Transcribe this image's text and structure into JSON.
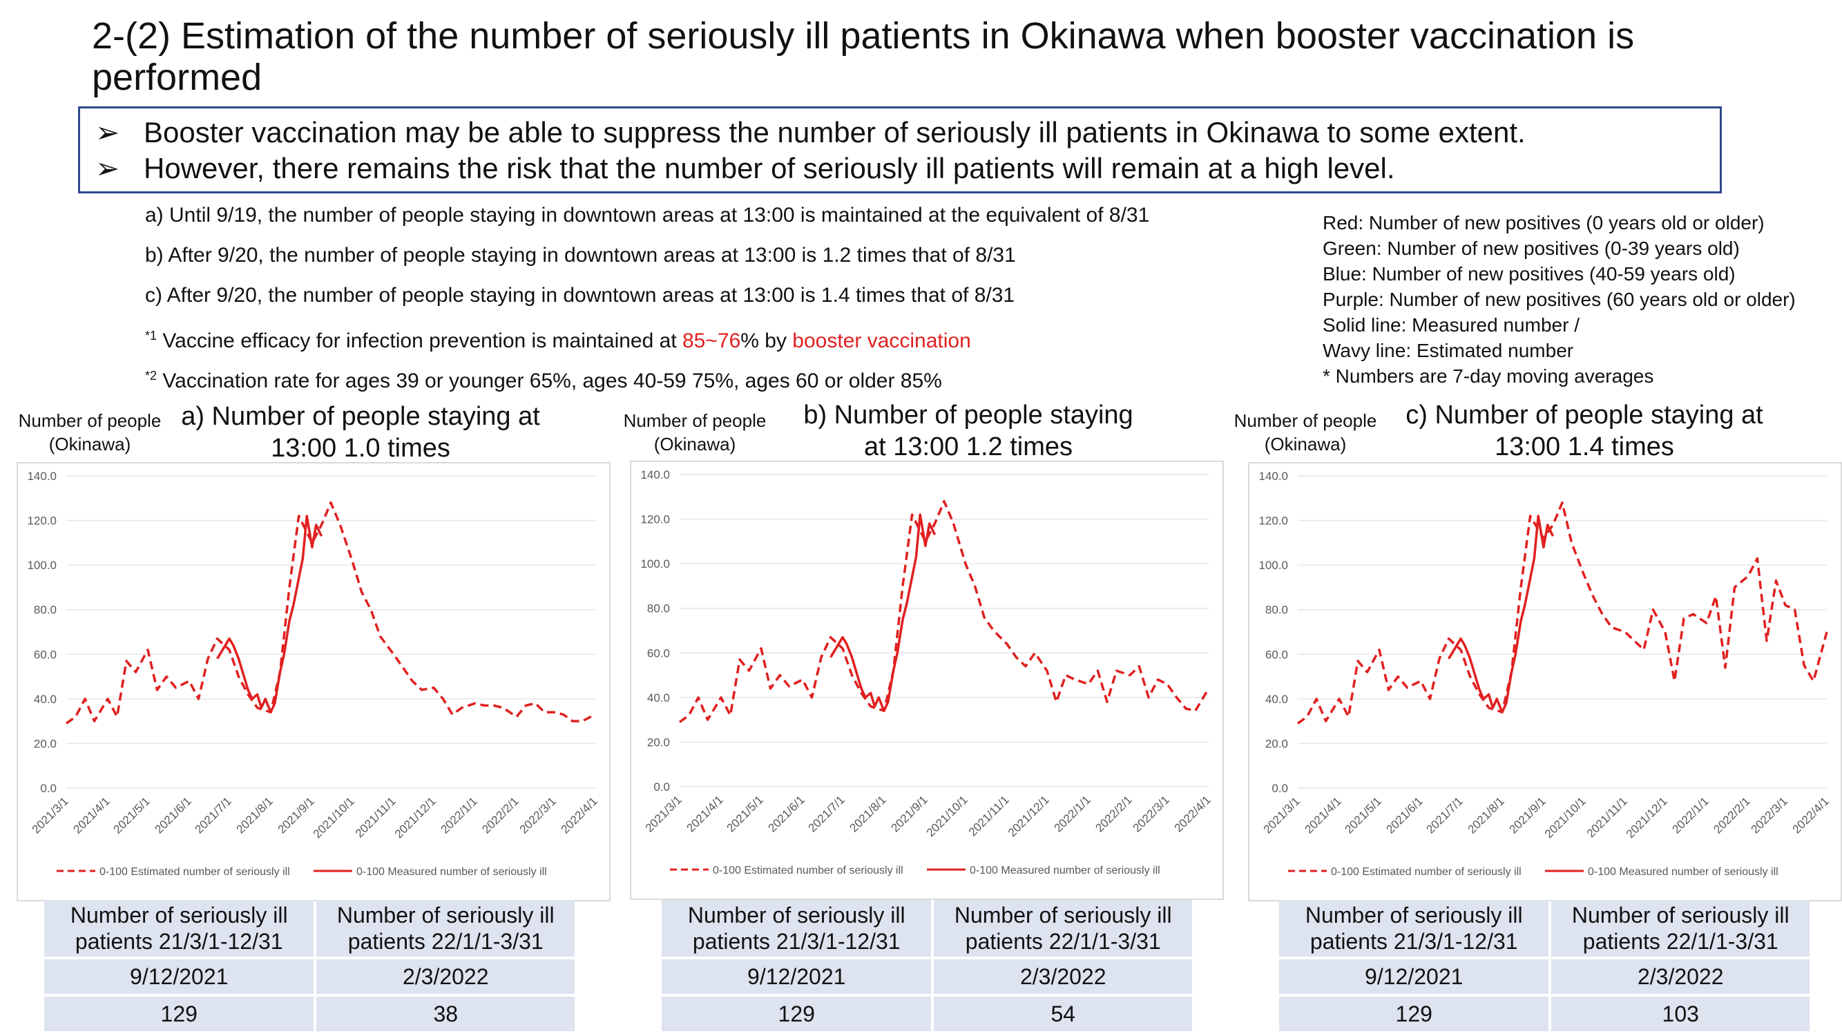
{
  "title": "2-(2) Estimation of the number of seriously ill patients in Okinawa when booster vaccination is performed",
  "key_points": [
    "Booster vaccination may be able to suppress the number of seriously ill patients in Okinawa to some extent.",
    "However, there remains the risk that the number of seriously ill patients will remain at a high level."
  ],
  "bullet_glyph": "➢",
  "conditions": {
    "a": "a) Until 9/19, the number of people staying in downtown areas at 13:00 is maintained at the equivalent of 8/31",
    "b": "b) After 9/20, the number of people staying in downtown areas at 13:00 is 1.2 times that of 8/31",
    "c": "c) After 9/20, the number of people staying in downtown areas at 13:00 is 1.4 times that of 8/31",
    "n1_mark": "*1",
    "n1_a": " Vaccine efficacy for infection prevention is maintained at ",
    "n1_red1": "85~76",
    "n1_b": "% by ",
    "n1_red2": "booster vaccination",
    "n2_mark": "*2",
    "n2_text": " Vaccination rate for ages 39 or younger 65%, ages 40-59 75%, ages 60 or older 85%"
  },
  "legend_notes": [
    "Red: Number of new positives (0 years old or older)",
    "Green: Number of new positives (0-39 years old)",
    "Blue: Number of new positives (40-59 years old)",
    "Purple: Number of new positives (60 years old or older)",
    "Solid line: Measured number /",
    "Wavy line: Estimated number",
    "* Numbers are 7-day moving averages"
  ],
  "colors": {
    "series": "#e02020",
    "border": "#2e4a8c",
    "table_cell": "#dde3ef"
  },
  "panels": [
    {
      "ylabel": [
        "Number of people",
        "(Okinawa)"
      ],
      "title": [
        "a) Number of people staying at",
        "13:00 1.0 times"
      ],
      "table": {
        "headers": [
          "Number of seriously ill patients 21/3/1-12/31",
          "Number of seriously ill patients 22/1/1-3/31"
        ],
        "dates": [
          "9/12/2021",
          "2/3/2022"
        ],
        "values": [
          "129",
          "38"
        ]
      }
    },
    {
      "ylabel": [
        "Number of people",
        "(Okinawa)"
      ],
      "title": [
        "b) Number of people staying",
        "at 13:00 1.2 times"
      ],
      "table": {
        "headers": [
          "Number of seriously ill patients 21/3/1-12/31",
          "Number of seriously ill patients 22/1/1-3/31"
        ],
        "dates": [
          "9/12/2021",
          "2/3/2022"
        ],
        "values": [
          "129",
          "54"
        ]
      }
    },
    {
      "ylabel": [
        "Number of people",
        "(Okinawa)"
      ],
      "title": [
        "c) Number of people staying at",
        "13:00 1.4 times"
      ],
      "table": {
        "headers": [
          "Number of seriously ill patients 21/3/1-12/31",
          "Number of seriously ill patients 22/1/1-3/31"
        ],
        "dates": [
          "9/12/2021",
          "2/3/2022"
        ],
        "values": [
          "129",
          "103"
        ]
      }
    }
  ],
  "chart_data": [
    {
      "type": "line",
      "ylim": [
        0,
        140
      ],
      "yticks": [
        "0.0",
        "20.0",
        "40.0",
        "60.0",
        "80.0",
        "100.0",
        "120.0",
        "140.0"
      ],
      "xticks": [
        "2021/3/1",
        "2021/4/1",
        "2021/5/1",
        "2021/6/1",
        "2021/7/1",
        "2021/8/1",
        "2021/9/1",
        "2021/10/1",
        "2021/11/1",
        "2021/12/1",
        "2022/1/1",
        "2022/2/1",
        "2022/3/1",
        "2022/4/1"
      ],
      "grid": true,
      "legend_position": "bottom",
      "series": [
        {
          "name": "0-100 Estimated number of seriously ill",
          "style": "dashed",
          "x": [
            "2021/3/1",
            "2021/3/8",
            "2021/3/15",
            "2021/3/22",
            "2021/4/1",
            "2021/4/8",
            "2021/4/15",
            "2021/4/22",
            "2021/5/1",
            "2021/5/8",
            "2021/5/15",
            "2021/5/22",
            "2021/6/1",
            "2021/6/8",
            "2021/6/15",
            "2021/6/22",
            "2021/7/1",
            "2021/7/8",
            "2021/7/15",
            "2021/7/22",
            "2021/8/1",
            "2021/8/8",
            "2021/8/15",
            "2021/8/22",
            "2021/9/1",
            "2021/9/8",
            "2021/9/15",
            "2021/9/22",
            "2021/10/1",
            "2021/10/8",
            "2021/10/15",
            "2021/10/22",
            "2021/11/1",
            "2021/11/8",
            "2021/11/15",
            "2021/11/22",
            "2021/12/1",
            "2021/12/8",
            "2021/12/15",
            "2021/12/22",
            "2022/1/1",
            "2022/1/8",
            "2022/1/15",
            "2022/1/22",
            "2022/2/1",
            "2022/2/8",
            "2022/2/15",
            "2022/2/22",
            "2022/3/1",
            "2022/3/8",
            "2022/3/15",
            "2022/3/22",
            "2022/4/1"
          ],
          "y": [
            29,
            32,
            40,
            30,
            40,
            32,
            57,
            52,
            62,
            44,
            50,
            45,
            48,
            40,
            58,
            67,
            62,
            50,
            42,
            36,
            34,
            52,
            90,
            122,
            110,
            118,
            128,
            118,
            102,
            88,
            80,
            68,
            60,
            54,
            48,
            44,
            45,
            40,
            33,
            36,
            38,
            37,
            37,
            36,
            32,
            37,
            38,
            34,
            34,
            33,
            30,
            30,
            33
          ]
        },
        {
          "name": "0-100 Measured number of seriously ill",
          "style": "solid",
          "x": [
            "2021/6/22",
            "2021/7/1",
            "2021/7/4",
            "2021/7/8",
            "2021/7/12",
            "2021/7/15",
            "2021/7/18",
            "2021/7/22",
            "2021/7/25",
            "2021/7/28",
            "2021/8/1",
            "2021/8/4",
            "2021/8/8",
            "2021/8/11",
            "2021/8/15",
            "2021/8/18",
            "2021/8/22",
            "2021/8/25",
            "2021/8/28",
            "2021/9/1",
            "2021/9/4",
            "2021/9/8"
          ],
          "y": [
            58,
            67,
            64,
            58,
            50,
            44,
            40,
            42,
            36,
            40,
            34,
            38,
            52,
            60,
            75,
            82,
            94,
            103,
            122,
            108,
            118,
            113
          ]
        }
      ]
    },
    {
      "type": "line",
      "ylim": [
        0,
        140
      ],
      "yticks": [
        "0.0",
        "20.0",
        "40.0",
        "60.0",
        "80.0",
        "100.0",
        "120.0",
        "140.0"
      ],
      "xticks": [
        "2021/3/1",
        "2021/4/1",
        "2021/5/1",
        "2021/6/1",
        "2021/7/1",
        "2021/8/1",
        "2021/9/1",
        "2021/10/1",
        "2021/11/1",
        "2021/12/1",
        "2022/1/1",
        "2022/2/1",
        "2022/3/1",
        "2022/4/1"
      ],
      "grid": true,
      "legend_position": "bottom",
      "series": [
        {
          "name": "0-100 Estimated number of seriously ill",
          "style": "dashed",
          "x": [
            "2021/3/1",
            "2021/3/8",
            "2021/3/15",
            "2021/3/22",
            "2021/4/1",
            "2021/4/8",
            "2021/4/15",
            "2021/4/22",
            "2021/5/1",
            "2021/5/8",
            "2021/5/15",
            "2021/5/22",
            "2021/6/1",
            "2021/6/8",
            "2021/6/15",
            "2021/6/22",
            "2021/7/1",
            "2021/7/8",
            "2021/7/15",
            "2021/7/22",
            "2021/8/1",
            "2021/8/8",
            "2021/8/15",
            "2021/8/22",
            "2021/9/1",
            "2021/9/8",
            "2021/9/15",
            "2021/9/22",
            "2021/10/1",
            "2021/10/8",
            "2021/10/15",
            "2021/10/22",
            "2021/11/1",
            "2021/11/8",
            "2021/11/15",
            "2021/11/22",
            "2021/12/1",
            "2021/12/8",
            "2021/12/15",
            "2021/12/22",
            "2022/1/1",
            "2022/1/8",
            "2022/1/15",
            "2022/1/22",
            "2022/2/1",
            "2022/2/8",
            "2022/2/15",
            "2022/2/22",
            "2022/3/1",
            "2022/3/8",
            "2022/3/15",
            "2022/3/22",
            "2022/4/1"
          ],
          "y": [
            29,
            32,
            40,
            30,
            40,
            32,
            57,
            52,
            62,
            44,
            50,
            45,
            48,
            40,
            58,
            67,
            62,
            50,
            42,
            36,
            34,
            52,
            90,
            122,
            110,
            118,
            128,
            118,
            100,
            90,
            76,
            70,
            64,
            58,
            54,
            60,
            52,
            38,
            50,
            48,
            46,
            52,
            38,
            52,
            50,
            54,
            40,
            48,
            46,
            40,
            35,
            34,
            44
          ]
        },
        {
          "name": "0-100 Measured number of seriously ill",
          "style": "solid",
          "x": [
            "2021/6/22",
            "2021/7/1",
            "2021/7/4",
            "2021/7/8",
            "2021/7/12",
            "2021/7/15",
            "2021/7/18",
            "2021/7/22",
            "2021/7/25",
            "2021/7/28",
            "2021/8/1",
            "2021/8/4",
            "2021/8/8",
            "2021/8/11",
            "2021/8/15",
            "2021/8/18",
            "2021/8/22",
            "2021/8/25",
            "2021/8/28",
            "2021/9/1",
            "2021/9/4",
            "2021/9/8"
          ],
          "y": [
            58,
            67,
            64,
            58,
            50,
            44,
            40,
            42,
            36,
            40,
            34,
            38,
            52,
            60,
            75,
            82,
            94,
            103,
            122,
            108,
            118,
            113
          ]
        }
      ]
    },
    {
      "type": "line",
      "ylim": [
        0,
        140
      ],
      "yticks": [
        "0.0",
        "20.0",
        "40.0",
        "60.0",
        "80.0",
        "100.0",
        "120.0",
        "140.0"
      ],
      "xticks": [
        "2021/3/1",
        "2021/4/1",
        "2021/5/1",
        "2021/6/1",
        "2021/7/1",
        "2021/8/1",
        "2021/9/1",
        "2021/10/1",
        "2021/11/1",
        "2021/12/1",
        "2022/1/1",
        "2022/2/1",
        "2022/3/1",
        "2022/4/1"
      ],
      "grid": true,
      "legend_position": "bottom",
      "series": [
        {
          "name": "0-100 Estimated number of seriously ill",
          "style": "dashed",
          "x": [
            "2021/3/1",
            "2021/3/8",
            "2021/3/15",
            "2021/3/22",
            "2021/4/1",
            "2021/4/8",
            "2021/4/15",
            "2021/4/22",
            "2021/5/1",
            "2021/5/8",
            "2021/5/15",
            "2021/5/22",
            "2021/6/1",
            "2021/6/8",
            "2021/6/15",
            "2021/6/22",
            "2021/7/1",
            "2021/7/8",
            "2021/7/15",
            "2021/7/22",
            "2021/8/1",
            "2021/8/8",
            "2021/8/15",
            "2021/8/22",
            "2021/9/1",
            "2021/9/8",
            "2021/9/15",
            "2021/9/22",
            "2021/10/1",
            "2021/10/8",
            "2021/10/15",
            "2021/10/22",
            "2021/11/1",
            "2021/11/8",
            "2021/11/15",
            "2021/11/22",
            "2021/12/1",
            "2021/12/8",
            "2021/12/15",
            "2021/12/22",
            "2022/1/1",
            "2022/1/8",
            "2022/1/15",
            "2022/1/22",
            "2022/2/1",
            "2022/2/8",
            "2022/2/15",
            "2022/2/22",
            "2022/3/1",
            "2022/3/8",
            "2022/3/15",
            "2022/3/22",
            "2022/4/1"
          ],
          "y": [
            29,
            32,
            40,
            30,
            40,
            32,
            57,
            52,
            62,
            44,
            50,
            45,
            48,
            40,
            58,
            67,
            62,
            50,
            42,
            36,
            34,
            52,
            90,
            122,
            112,
            118,
            128,
            110,
            96,
            86,
            78,
            72,
            70,
            66,
            62,
            80,
            70,
            48,
            76,
            78,
            74,
            86,
            54,
            90,
            95,
            103,
            66,
            93,
            82,
            80,
            55,
            48,
            70
          ]
        },
        {
          "name": "0-100 Measured number of seriously ill",
          "style": "solid",
          "x": [
            "2021/6/22",
            "2021/7/1",
            "2021/7/4",
            "2021/7/8",
            "2021/7/12",
            "2021/7/15",
            "2021/7/18",
            "2021/7/22",
            "2021/7/25",
            "2021/7/28",
            "2021/8/1",
            "2021/8/4",
            "2021/8/8",
            "2021/8/11",
            "2021/8/15",
            "2021/8/18",
            "2021/8/22",
            "2021/8/25",
            "2021/8/28",
            "2021/9/1",
            "2021/9/4",
            "2021/9/8"
          ],
          "y": [
            58,
            67,
            64,
            58,
            50,
            44,
            40,
            42,
            36,
            40,
            34,
            38,
            52,
            60,
            75,
            82,
            94,
            103,
            122,
            108,
            118,
            113
          ]
        }
      ]
    }
  ]
}
